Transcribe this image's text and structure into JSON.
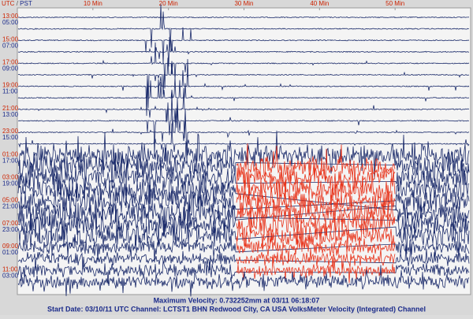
{
  "chart_data": {
    "type": "helicorder",
    "header": {
      "utc_label": "UTC",
      "separator": "/",
      "pst_label": "PST"
    },
    "xlim": [
      0,
      60
    ],
    "xticks": [
      {
        "value": 10,
        "label": "10 Min"
      },
      {
        "value": 20,
        "label": "20 Min"
      },
      {
        "value": 30,
        "label": "30 Min"
      },
      {
        "value": 40,
        "label": "40 Min"
      },
      {
        "value": 50,
        "label": "50 Min"
      }
    ],
    "rows": [
      {
        "utc": "13:00",
        "pst": "05:00"
      },
      {
        "utc": "15:00",
        "pst": "07:00"
      },
      {
        "utc": "17:00",
        "pst": "09:00"
      },
      {
        "utc": "19:00",
        "pst": "11:00"
      },
      {
        "utc": "21:00",
        "pst": "13:00"
      },
      {
        "utc": "23:00",
        "pst": "15:00"
      },
      {
        "utc": "01:00",
        "pst": "17:00"
      },
      {
        "utc": "03:00",
        "pst": "19:00"
      },
      {
        "utc": "05:00",
        "pst": "21:00"
      },
      {
        "utc": "07:00",
        "pst": "23:00"
      },
      {
        "utc": "09:00",
        "pst": "01:00"
      },
      {
        "utc": "11:00",
        "pst": "03:00"
      }
    ],
    "colors": {
      "utc": "#cc2200",
      "pst": "#1a2a8a"
    },
    "footer": {
      "max_velocity": "Maximum Velocity: 0.732252mm at 03/11 06:18:07",
      "info": "Start Date: 03/10/11 UTC Channel: LCTST1  BHN  Redwood City, CA USA  VolksMeter Velocity (Integrated) Channel"
    }
  }
}
